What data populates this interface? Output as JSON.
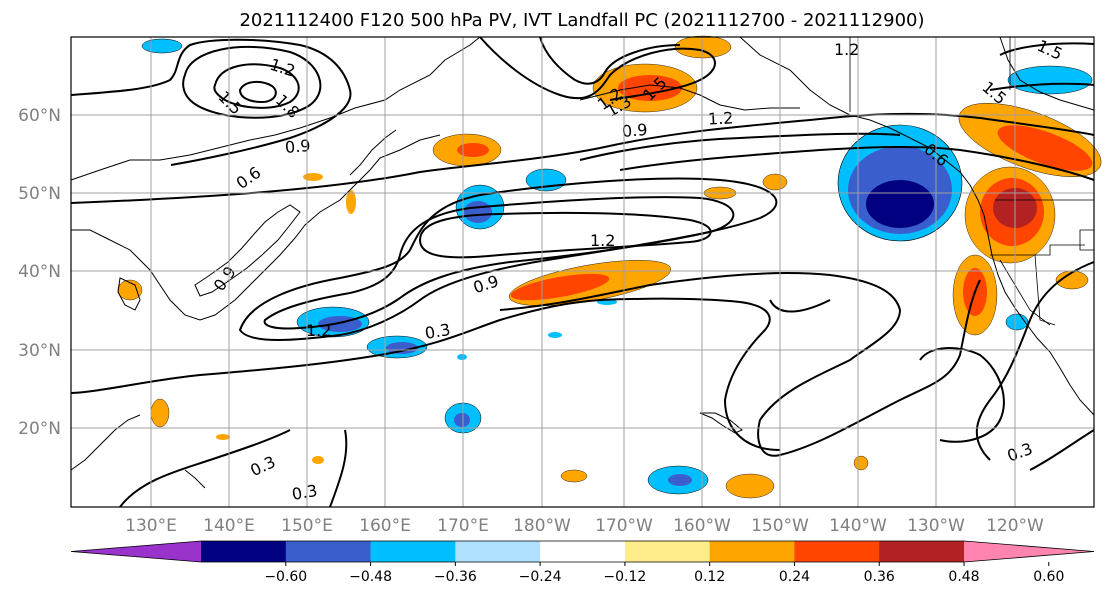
{
  "title": "2021112400 F120 500 hPa PV, IVT Landfall PC (2021112700 - 2021112900)",
  "map": {
    "lat_labels": [
      "60°N",
      "50°N",
      "40°N",
      "30°N",
      "20°N"
    ],
    "lon_labels": [
      "130°E",
      "140°E",
      "150°E",
      "160°E",
      "170°E",
      "180°W",
      "170°W",
      "160°W",
      "150°W",
      "140°W",
      "130°W",
      "120°W"
    ],
    "contour_labels": [
      "1.2",
      "1.8",
      "1.5",
      "0.9",
      "0.6",
      "0.9",
      "1.2",
      "1.2",
      "1.5",
      "1.2",
      "1.5",
      "0.9",
      "1.2",
      "0.6",
      "0.9",
      "0.3",
      "1.2",
      "0.3",
      "0.3",
      "0.3",
      "1.5",
      "1.3"
    ],
    "grid": true
  },
  "colorbar": {
    "ticks": [
      "−0.60",
      "−0.48",
      "−0.36",
      "−0.24",
      "−0.12",
      "0.12",
      "0.24",
      "0.36",
      "0.48",
      "0.60"
    ],
    "colors": [
      "#9933cc",
      "#000080",
      "#3a5fcd",
      "#00bfff",
      "#b0e2ff",
      "#ffffff",
      "#ffec8b",
      "#ffa500",
      "#ff4500",
      "#b22222",
      "#ff85b0"
    ],
    "extend": "both"
  }
}
